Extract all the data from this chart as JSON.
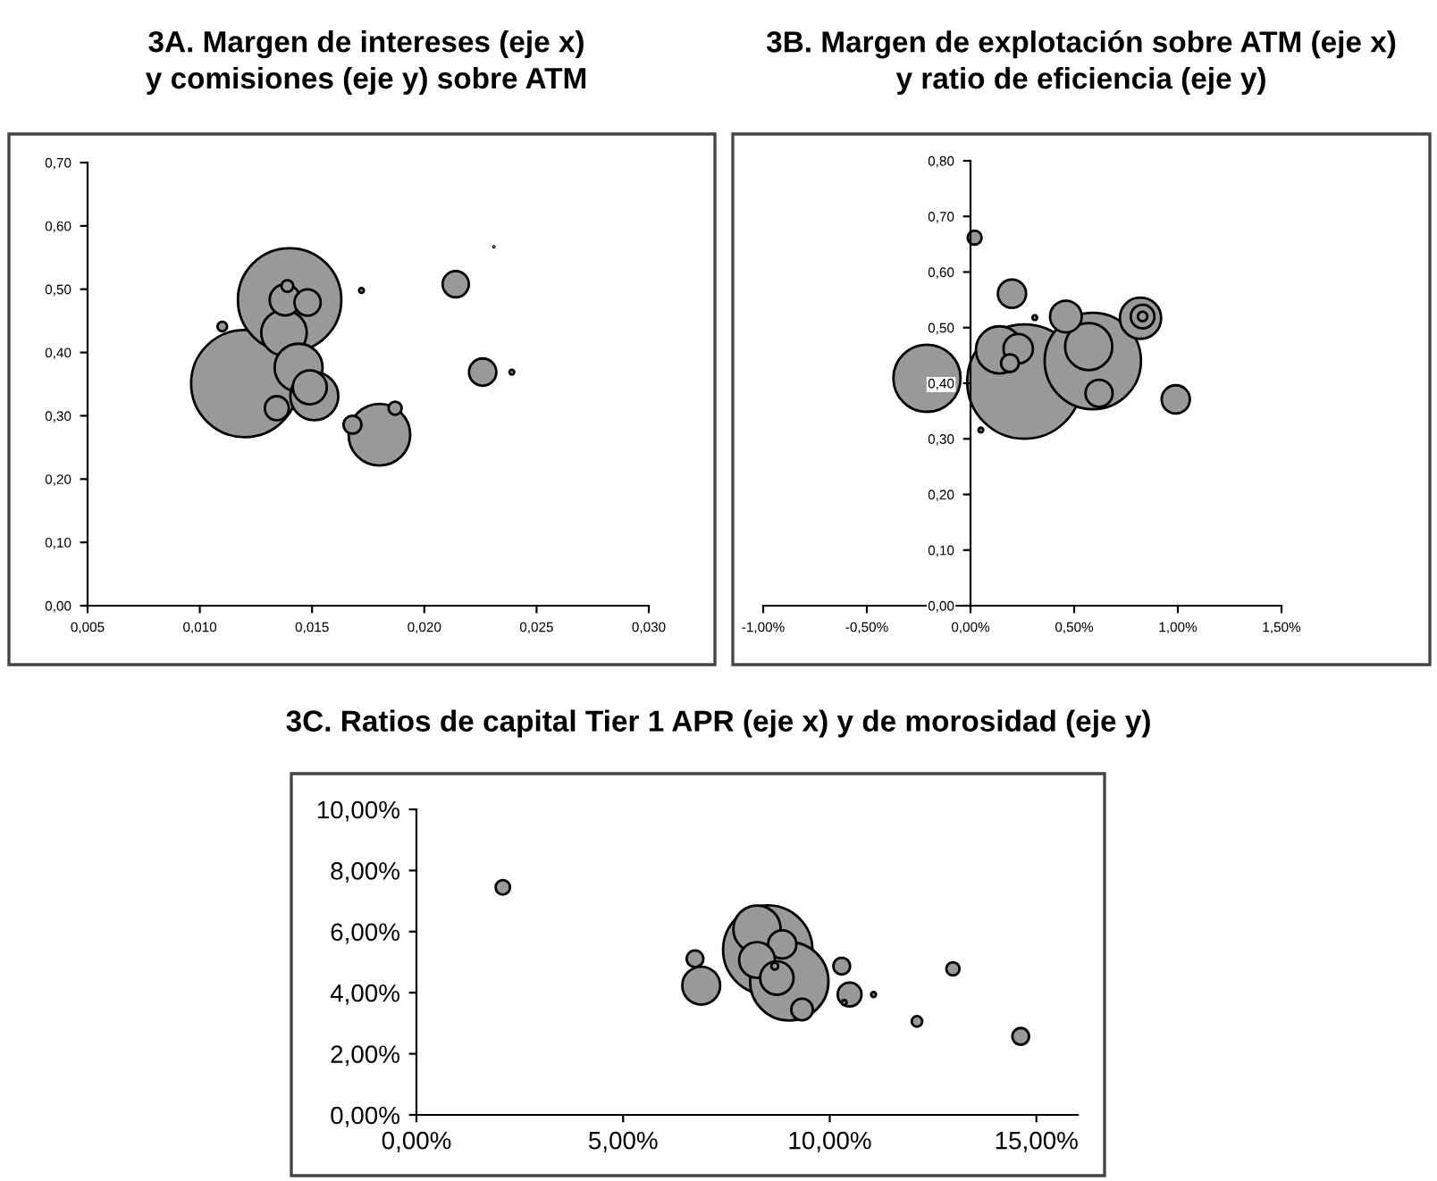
{
  "chart_data": [
    {
      "type": "bubble",
      "title": "3A. Margen de intereses (eje x)\ny comisiones (eje y) sobre ATM",
      "color": "#999999",
      "grid": false,
      "x": [
        0.012,
        0.014,
        0.01375,
        0.0144,
        0.0151,
        0.0149,
        0.01343,
        0.0138,
        0.0148,
        0.0139,
        0.011,
        0.0172,
        0.0231,
        0.0214,
        0.0226,
        0.0239,
        0.018,
        0.0168,
        0.0187
      ],
      "values": [
        0.351,
        0.483,
        0.431,
        0.376,
        0.331,
        0.345,
        0.312,
        0.483,
        0.479,
        0.505,
        0.441,
        0.498,
        0.567,
        0.508,
        0.369,
        0.369,
        0.27,
        0.286,
        0.312
      ],
      "sizes": [
        1.0,
        0.93,
        0.18,
        0.2,
        0.2,
        0.1,
        0.05,
        0.083,
        0.06,
        0.012,
        0.008,
        0.002,
        0.0001,
        0.06,
        0.065,
        0.002,
        0.33,
        0.028,
        0.015
      ],
      "xlim": [
        0.005,
        0.03
      ],
      "ylim": [
        0,
        0.7
      ],
      "xticks": [
        {
          "value": 0.005,
          "label": "0,005"
        },
        {
          "value": 0.01,
          "label": "0,010"
        },
        {
          "value": 0.015,
          "label": "0,015"
        },
        {
          "value": 0.02,
          "label": "0,020"
        },
        {
          "value": 0.025,
          "label": "0,025"
        },
        {
          "value": 0.03,
          "label": "0,030"
        }
      ],
      "yticks": [
        {
          "value": 0,
          "label": "0,00"
        },
        {
          "value": 0.1,
          "label": "0,10"
        },
        {
          "value": 0.2,
          "label": "0,20"
        },
        {
          "value": 0.3,
          "label": "0,30"
        },
        {
          "value": 0.4,
          "label": "0,40"
        },
        {
          "value": 0.5,
          "label": "0,50"
        },
        {
          "value": 0.6,
          "label": "0,60"
        },
        {
          "value": 0.7,
          "label": "0,70"
        }
      ]
    },
    {
      "type": "bubble",
      "title": "3B. Margen de explotación sobre ATM (eje x)\ny ratio de eficiencia (eje y)",
      "color": "#999999",
      "grid": false,
      "x": [
        0.26,
        0.59,
        -0.21,
        0.14,
        0.57,
        0.23,
        0.19,
        0.2,
        0.02,
        0.46,
        0.82,
        0.83,
        0.83,
        0.62,
        0.99,
        0.05,
        0.31
      ],
      "values": [
        0.403,
        0.44,
        0.409,
        0.46,
        0.466,
        0.462,
        0.436,
        0.561,
        0.662,
        0.52,
        0.517,
        0.52,
        0.52,
        0.382,
        0.371,
        0.316,
        0.518
      ],
      "sizes": [
        1.0,
        0.71,
        0.345,
        0.17,
        0.17,
        0.066,
        0.024,
        0.061,
        0.015,
        0.077,
        0.13,
        0.043,
        0.007,
        0.056,
        0.061,
        0.0017,
        0.0017
      ],
      "xlim": [
        -1.0,
        1.5
      ],
      "ylim": [
        0,
        0.8
      ],
      "xticks": [
        {
          "value": -1.0,
          "label": "-1,00%"
        },
        {
          "value": -0.5,
          "label": "-0,50%"
        },
        {
          "value": 0,
          "label": "0,00%"
        },
        {
          "value": 0.5,
          "label": "0,50%"
        },
        {
          "value": 1.0,
          "label": "1,00%"
        },
        {
          "value": 1.5,
          "label": "1,50%"
        }
      ],
      "yticks": [
        {
          "value": 0,
          "label": "0,00"
        },
        {
          "value": 0.1,
          "label": "0,10"
        },
        {
          "value": 0.2,
          "label": "0,20"
        },
        {
          "value": 0.3,
          "label": "0,30"
        },
        {
          "value": 0.4,
          "label": "0,40"
        },
        {
          "value": 0.5,
          "label": "0,50"
        },
        {
          "value": 0.6,
          "label": "0,60"
        },
        {
          "value": 0.7,
          "label": "0,70"
        },
        {
          "value": 0.8,
          "label": "0,80"
        }
      ]
    },
    {
      "type": "bubble",
      "title": "3C. Ratios de capital Tier 1 APR (eje x) y de morosidad (eje y)",
      "color": "#999999",
      "grid": false,
      "x": [
        2.09,
        6.74,
        6.89,
        8.5,
        9.02,
        8.24,
        8.85,
        8.24,
        8.72,
        8.67,
        9.33,
        10.29,
        10.48,
        10.35,
        11.06,
        12.11,
        12.98,
        14.62
      ],
      "values": [
        7.45,
        5.11,
        4.23,
        5.4,
        4.37,
        6.08,
        5.58,
        5.07,
        4.48,
        4.87,
        3.45,
        4.87,
        3.94,
        3.68,
        3.94,
        3.06,
        4.78,
        2.57
      ],
      "sizes": [
        0.026,
        0.035,
        0.18,
        1.0,
        0.77,
        0.28,
        0.1,
        0.16,
        0.14,
        0.006,
        0.058,
        0.035,
        0.071,
        0.003,
        0.003,
        0.014,
        0.022,
        0.035
      ],
      "xlim": [
        0,
        16
      ],
      "ylim": [
        0,
        10
      ],
      "xticks": [
        {
          "value": 0,
          "label": "0,00%"
        },
        {
          "value": 5,
          "label": "5,00%"
        },
        {
          "value": 10,
          "label": "10,00%"
        },
        {
          "value": 15,
          "label": "15,00%"
        }
      ],
      "yticks": [
        {
          "value": 0,
          "label": "0,00%"
        },
        {
          "value": 2,
          "label": "2,00%"
        },
        {
          "value": 4,
          "label": "4,00%"
        },
        {
          "value": 6,
          "label": "6,00%"
        },
        {
          "value": 8,
          "label": "8,00%"
        },
        {
          "value": 10,
          "label": "10,00%"
        }
      ]
    }
  ]
}
